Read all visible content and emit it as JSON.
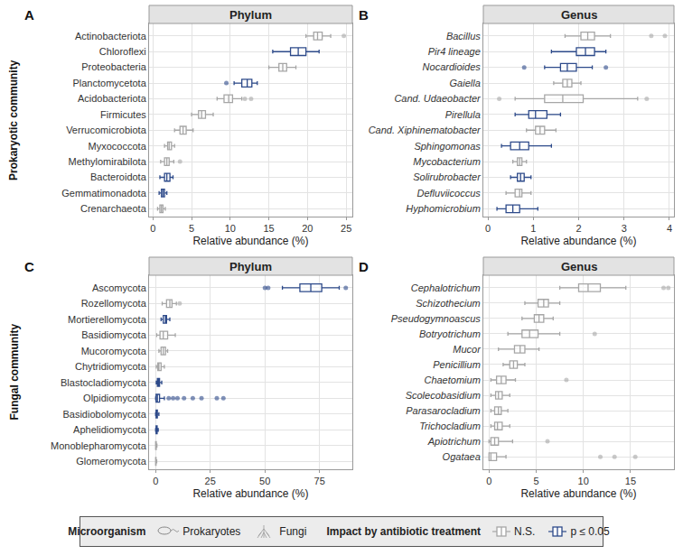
{
  "chart_data": [
    {
      "type": "box",
      "panel": "A",
      "title": "Phylum",
      "row_label": "Prokaryotic community",
      "x_label": "Relative abundance (%)",
      "orientation": "horizontal",
      "grid": true,
      "xlim": [
        -0.5,
        25.8
      ],
      "xticks": [
        0,
        5,
        10,
        15,
        20,
        25
      ],
      "categories": [
        "Actinobacteriota",
        "Chloroflexi",
        "Proteobacteria",
        "Planctomycetota",
        "Acidobacteriota",
        "Firmicutes",
        "Verrucomicrobiota",
        "Myxococcota",
        "Methylomirabilota",
        "Bacteroidota",
        "Gemmatimonadota",
        "Crenarchaeota"
      ],
      "q1": [
        20.8,
        17.8,
        16.3,
        11.5,
        9.2,
        5.9,
        3.5,
        1.9,
        1.5,
        1.5,
        1.1,
        0.9
      ],
      "median": [
        21.3,
        18.8,
        16.8,
        12.2,
        9.8,
        6.3,
        3.9,
        2.1,
        1.8,
        1.8,
        1.3,
        1.1
      ],
      "q3": [
        21.9,
        19.8,
        17.3,
        12.8,
        10.3,
        6.8,
        4.3,
        2.4,
        2.1,
        2.2,
        1.5,
        1.3
      ],
      "lowerfence": [
        19.8,
        15.5,
        15.0,
        10.5,
        8.3,
        5.0,
        2.8,
        1.5,
        1.0,
        0.9,
        0.8,
        0.6
      ],
      "upperfence": [
        23.0,
        21.5,
        18.5,
        13.5,
        11.5,
        7.8,
        5.2,
        2.8,
        2.7,
        2.6,
        1.8,
        1.6
      ],
      "outliers": [
        [
          24.7
        ],
        [],
        [],
        [
          9.5
        ],
        [
          11.9,
          12.7
        ],
        [],
        [],
        [],
        [
          3.5
        ],
        [],
        [],
        []
      ],
      "significant": [
        false,
        true,
        false,
        true,
        false,
        false,
        false,
        false,
        false,
        true,
        true,
        false
      ]
    },
    {
      "type": "box",
      "panel": "B",
      "title": "Genus",
      "x_label": "Relative abundance (%)",
      "orientation": "horizontal",
      "grid": true,
      "xlim": [
        -0.1,
        4.1
      ],
      "xticks": [
        0,
        1,
        2,
        3,
        4
      ],
      "categories": [
        "Bacillus",
        "Pir4 lineage",
        "Nocardioides",
        "Gaiella",
        "Cand. Udaeobacter",
        "Pirellula",
        "Cand. Xiphinematobacter",
        "Sphingomonas",
        "Mycobacterium",
        "Solirubrobacter",
        "Defluviicoccus",
        "Hyphomicrobium"
      ],
      "q1": [
        2.05,
        1.95,
        1.6,
        1.65,
        1.25,
        0.9,
        1.05,
        0.5,
        0.65,
        0.65,
        0.6,
        0.4
      ],
      "median": [
        2.2,
        2.15,
        1.75,
        1.75,
        1.65,
        1.05,
        1.15,
        0.7,
        0.7,
        0.72,
        0.7,
        0.55
      ],
      "q3": [
        2.35,
        2.35,
        1.95,
        1.85,
        2.1,
        1.3,
        1.25,
        0.9,
        0.75,
        0.8,
        0.75,
        0.7
      ],
      "lowerfence": [
        1.7,
        1.4,
        1.25,
        1.45,
        0.6,
        0.6,
        0.85,
        0.3,
        0.55,
        0.5,
        0.4,
        0.2
      ],
      "upperfence": [
        2.7,
        2.6,
        2.3,
        2.05,
        3.3,
        1.6,
        1.5,
        1.4,
        0.85,
        0.95,
        0.95,
        1.1
      ],
      "outliers": [
        [
          3.6,
          3.9
        ],
        [],
        [
          0.8,
          2.6
        ],
        [],
        [
          0.25,
          3.5
        ],
        [],
        [],
        [],
        [],
        [],
        [],
        []
      ],
      "significant": [
        false,
        true,
        true,
        false,
        false,
        true,
        false,
        true,
        false,
        true,
        false,
        true
      ]
    },
    {
      "type": "box",
      "panel": "C",
      "title": "Phylum",
      "row_label": "Fungal community",
      "x_label": "Relative abundance (%)",
      "orientation": "horizontal",
      "grid": true,
      "xlim": [
        -3,
        90
      ],
      "xticks": [
        0,
        25,
        50,
        75
      ],
      "categories": [
        "Ascomycota",
        "Rozellomycota",
        "Mortierellomycota",
        "Basidiomycota",
        "Mucoromycota",
        "Chytridiomycota",
        "Blastocladiomycota",
        "Olpidiomycota",
        "Basidiobolomycota",
        "Aphelidiomycota",
        "Monoblepharomycota",
        "Glomeromycota"
      ],
      "q1": [
        66,
        5,
        3.5,
        2,
        2.5,
        1,
        0.8,
        0.2,
        0.2,
        0.2,
        0,
        0
      ],
      "median": [
        71,
        6.5,
        4.5,
        3.5,
        3.5,
        1.5,
        1.3,
        0.8,
        0.5,
        0.4,
        0.1,
        0.1
      ],
      "q3": [
        76,
        7.5,
        5,
        5.5,
        4.5,
        2.5,
        1.8,
        1.8,
        0.8,
        0.7,
        0.3,
        0.2
      ],
      "lowerfence": [
        58,
        3,
        2.5,
        0.5,
        1.5,
        0.3,
        0.3,
        0,
        0,
        0,
        0,
        0
      ],
      "upperfence": [
        84,
        9.5,
        6.5,
        9,
        5.5,
        4,
        2.8,
        4,
        1.5,
        1.2,
        0.6,
        0.5
      ],
      "outliers": [
        [
          50,
          51.5,
          87
        ],
        [
          11
        ],
        [],
        [],
        [],
        [],
        [],
        [
          6,
          8,
          10,
          13,
          17,
          21,
          28,
          31
        ],
        [],
        [],
        [],
        []
      ],
      "significant": [
        true,
        false,
        true,
        false,
        false,
        false,
        true,
        true,
        true,
        true,
        false,
        false
      ]
    },
    {
      "type": "box",
      "panel": "D",
      "title": "Genus",
      "x_label": "Relative abundance (%)",
      "orientation": "horizontal",
      "grid": true,
      "xlim": [
        -0.6,
        19.6
      ],
      "xticks": [
        0,
        5,
        10,
        15
      ],
      "categories": [
        "Cephalotrichum",
        "Schizothecium",
        "Pseudogymnoascus",
        "Botryotrichum",
        "Mucor",
        "Penicillium",
        "Chaetomium",
        "Scolecobasidium",
        "Parasarocladium",
        "Trichocladium",
        "Apiotrichum",
        "Ogataea"
      ],
      "q1": [
        9.5,
        5.2,
        4.8,
        3.5,
        2.7,
        2.2,
        0.8,
        0.7,
        0.6,
        0.6,
        0.2,
        0
      ],
      "median": [
        10.5,
        5.8,
        5.3,
        4.3,
        3.3,
        2.6,
        1.3,
        1,
        1,
        0.9,
        0.6,
        0.2
      ],
      "q3": [
        11.8,
        6.3,
        5.8,
        5.2,
        3.8,
        3,
        1.8,
        1.4,
        1.3,
        1.4,
        1,
        0.8
      ],
      "lowerfence": [
        7.5,
        3.8,
        3.5,
        2,
        1,
        1.5,
        0.2,
        0.2,
        0.2,
        0.2,
        0,
        0
      ],
      "upperfence": [
        14.5,
        7.5,
        6.8,
        7.5,
        5.3,
        3.8,
        2.8,
        2.2,
        2,
        2.2,
        2.5,
        1.8
      ],
      "outliers": [
        [
          18.5,
          19
        ],
        [],
        [],
        [
          11.2
        ],
        [],
        [],
        [
          8.2
        ],
        [],
        [],
        [],
        [
          6.2
        ],
        [
          11.8,
          13.3,
          15.5
        ]
      ],
      "significant": [
        false,
        false,
        false,
        false,
        false,
        false,
        false,
        false,
        false,
        false,
        false,
        false
      ]
    }
  ],
  "key_box": {
    "groups": [
      {
        "title": "Microorganism",
        "items": [
          {
            "label": "Prokaryotes"
          },
          {
            "label": "Fungi"
          }
        ]
      },
      {
        "title": "Impact by antibiotic treatment",
        "items": [
          {
            "label": "N.S.",
            "color": "#a6a6a6"
          },
          {
            "label": "p ≤ 0.05",
            "color": "#2d4a8a"
          }
        ]
      }
    ]
  }
}
